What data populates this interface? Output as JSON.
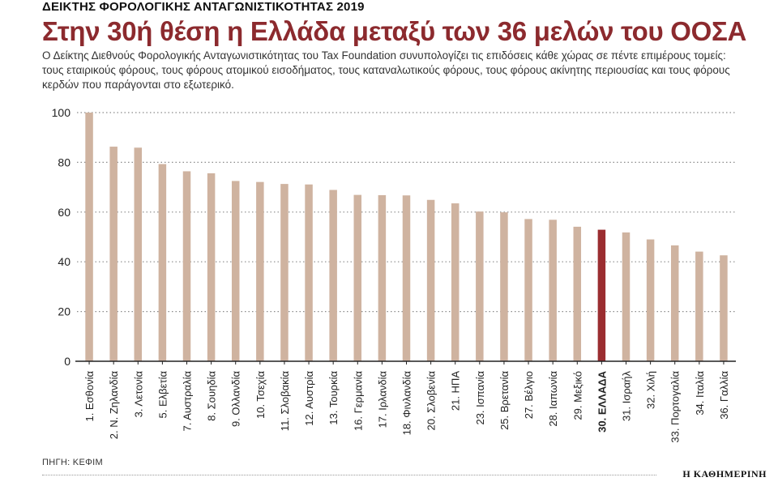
{
  "header": {
    "kicker": "ΔΕΙΚΤΗΣ ΦΟΡΟΛΟΓΙΚΗΣ ΑΝΤΑΓΩΝΙΣΤΙΚΟΤΗΤΑΣ 2019",
    "title": "Στην 30ή θέση η Ελλάδα μεταξύ των 36 μελών του ΟΟΣΑ",
    "description": "Ο Δείκτης Διεθνούς Φορολογικής Ανταγωνιστικότητας του Tax Foundation συνυπολογίζει τις επιδόσεις κάθε χώρας σε πέντε επιμέρους τομείς: τους εταιρικούς φόρους, τους φόρους ατομικού εισοδήματος, τους καταναλωτικούς φόρους, τους φόρους ακίνητης περιουσίας και τους φόρους κερδών που παράγονται στο εξωτερικό."
  },
  "footer": {
    "source": "ΠΗΓΗ: ΚΕΦΙΜ",
    "brand": "Η ΚΑΘΗΜΕΡΙΝΗ"
  },
  "colors": {
    "bar": "#cfb3a0",
    "highlight": "#9b2d30",
    "title": "#8c2a2e"
  },
  "chart_data": {
    "type": "bar",
    "categories": [
      "1. Εσθονία",
      "2. Ν. Ζηλανδία",
      "3. Λετονία",
      "5. Ελβετία",
      "7. Αυστραλία",
      "8. Σουηδία",
      "9. Ολλανδία",
      "10. Τσεχία",
      "11. Σλοβακία",
      "12. Αυστρία",
      "13. Τουρκία",
      "16. Γερμανία",
      "17. Ιρλανδία",
      "18. Φινλανδία",
      "20. Σλοβενία",
      "21. ΗΠΑ",
      "23. Ισπανία",
      "25. Βρετανία",
      "27. Βέλγιο",
      "28. Ιαπωνία",
      "29. Μεξικό",
      "30. ΕΛΛΑΔΑ",
      "31. Ισραήλ",
      "32. Χιλή",
      "33. Πορτογαλία",
      "34. Ιταλία",
      "36. Γαλλία"
    ],
    "values": [
      100,
      86.3,
      85.9,
      79.3,
      76.4,
      75.6,
      72.5,
      72.1,
      71.3,
      71.1,
      68.9,
      66.9,
      66.8,
      66.7,
      64.9,
      63.5,
      60.2,
      59.9,
      57.2,
      56.9,
      54.1,
      52.9,
      51.8,
      49.0,
      46.6,
      44.1,
      42.6
    ],
    "highlight_index": 21,
    "yticks": [
      0,
      20,
      40,
      60,
      80,
      100
    ],
    "ylim": [
      0,
      100
    ],
    "grid": true
  }
}
